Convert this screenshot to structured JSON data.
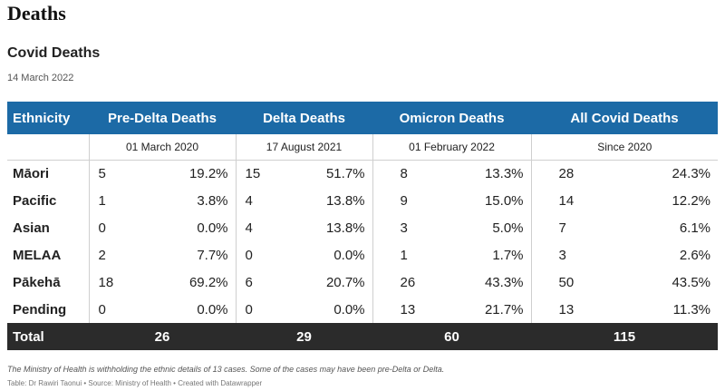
{
  "heading": "Deaths",
  "title": "Covid Deaths",
  "date": "14 March 2022",
  "table": {
    "columns": [
      "Ethnicity",
      "Pre-Delta Deaths",
      "Delta Deaths",
      "Omicron Deaths",
      "All Covid Deaths"
    ],
    "subheaders": [
      "01 March 2020",
      "17 August 2021",
      "01 February 2022",
      "Since 2020"
    ],
    "rows": [
      {
        "ethnicity": "Māori",
        "pre_n": "5",
        "pre_p": "19.2%",
        "delta_n": "15",
        "delta_p": "51.7%",
        "omi_n": "8",
        "omi_p": "13.3%",
        "all_n": "28",
        "all_p": "24.3%"
      },
      {
        "ethnicity": "Pacific",
        "pre_n": "1",
        "pre_p": "3.8%",
        "delta_n": "4",
        "delta_p": "13.8%",
        "omi_n": "9",
        "omi_p": "15.0%",
        "all_n": "14",
        "all_p": "12.2%"
      },
      {
        "ethnicity": "Asian",
        "pre_n": "0",
        "pre_p": "0.0%",
        "delta_n": "4",
        "delta_p": "13.8%",
        "omi_n": "3",
        "omi_p": "5.0%",
        "all_n": "7",
        "all_p": "6.1%"
      },
      {
        "ethnicity": "MELAA",
        "pre_n": "2",
        "pre_p": "7.7%",
        "delta_n": "0",
        "delta_p": "0.0%",
        "omi_n": "1",
        "omi_p": "1.7%",
        "all_n": "3",
        "all_p": "2.6%"
      },
      {
        "ethnicity": "Pākehā",
        "pre_n": "18",
        "pre_p": "69.2%",
        "delta_n": "6",
        "delta_p": "20.7%",
        "omi_n": "26",
        "omi_p": "43.3%",
        "all_n": "50",
        "all_p": "43.5%"
      },
      {
        "ethnicity": "Pending",
        "pre_n": "0",
        "pre_p": "0.0%",
        "delta_n": "0",
        "delta_p": "0.0%",
        "omi_n": "13",
        "omi_p": "21.7%",
        "all_n": "13",
        "all_p": "11.3%"
      }
    ],
    "total": {
      "label": "Total",
      "pre": "26",
      "delta": "29",
      "omi": "60",
      "all": "115"
    }
  },
  "notes": "The Ministry of Health is withholding the ethnic details of 13 cases. Some of the cases may have been pre-Delta or Delta.",
  "credit": "Table: Dr Rawiri Taonui • Source: Ministry of Health • Created with Datawrapper",
  "colors": {
    "header_bg": "#1c6aa6",
    "total_bg": "#2b2b2b"
  }
}
